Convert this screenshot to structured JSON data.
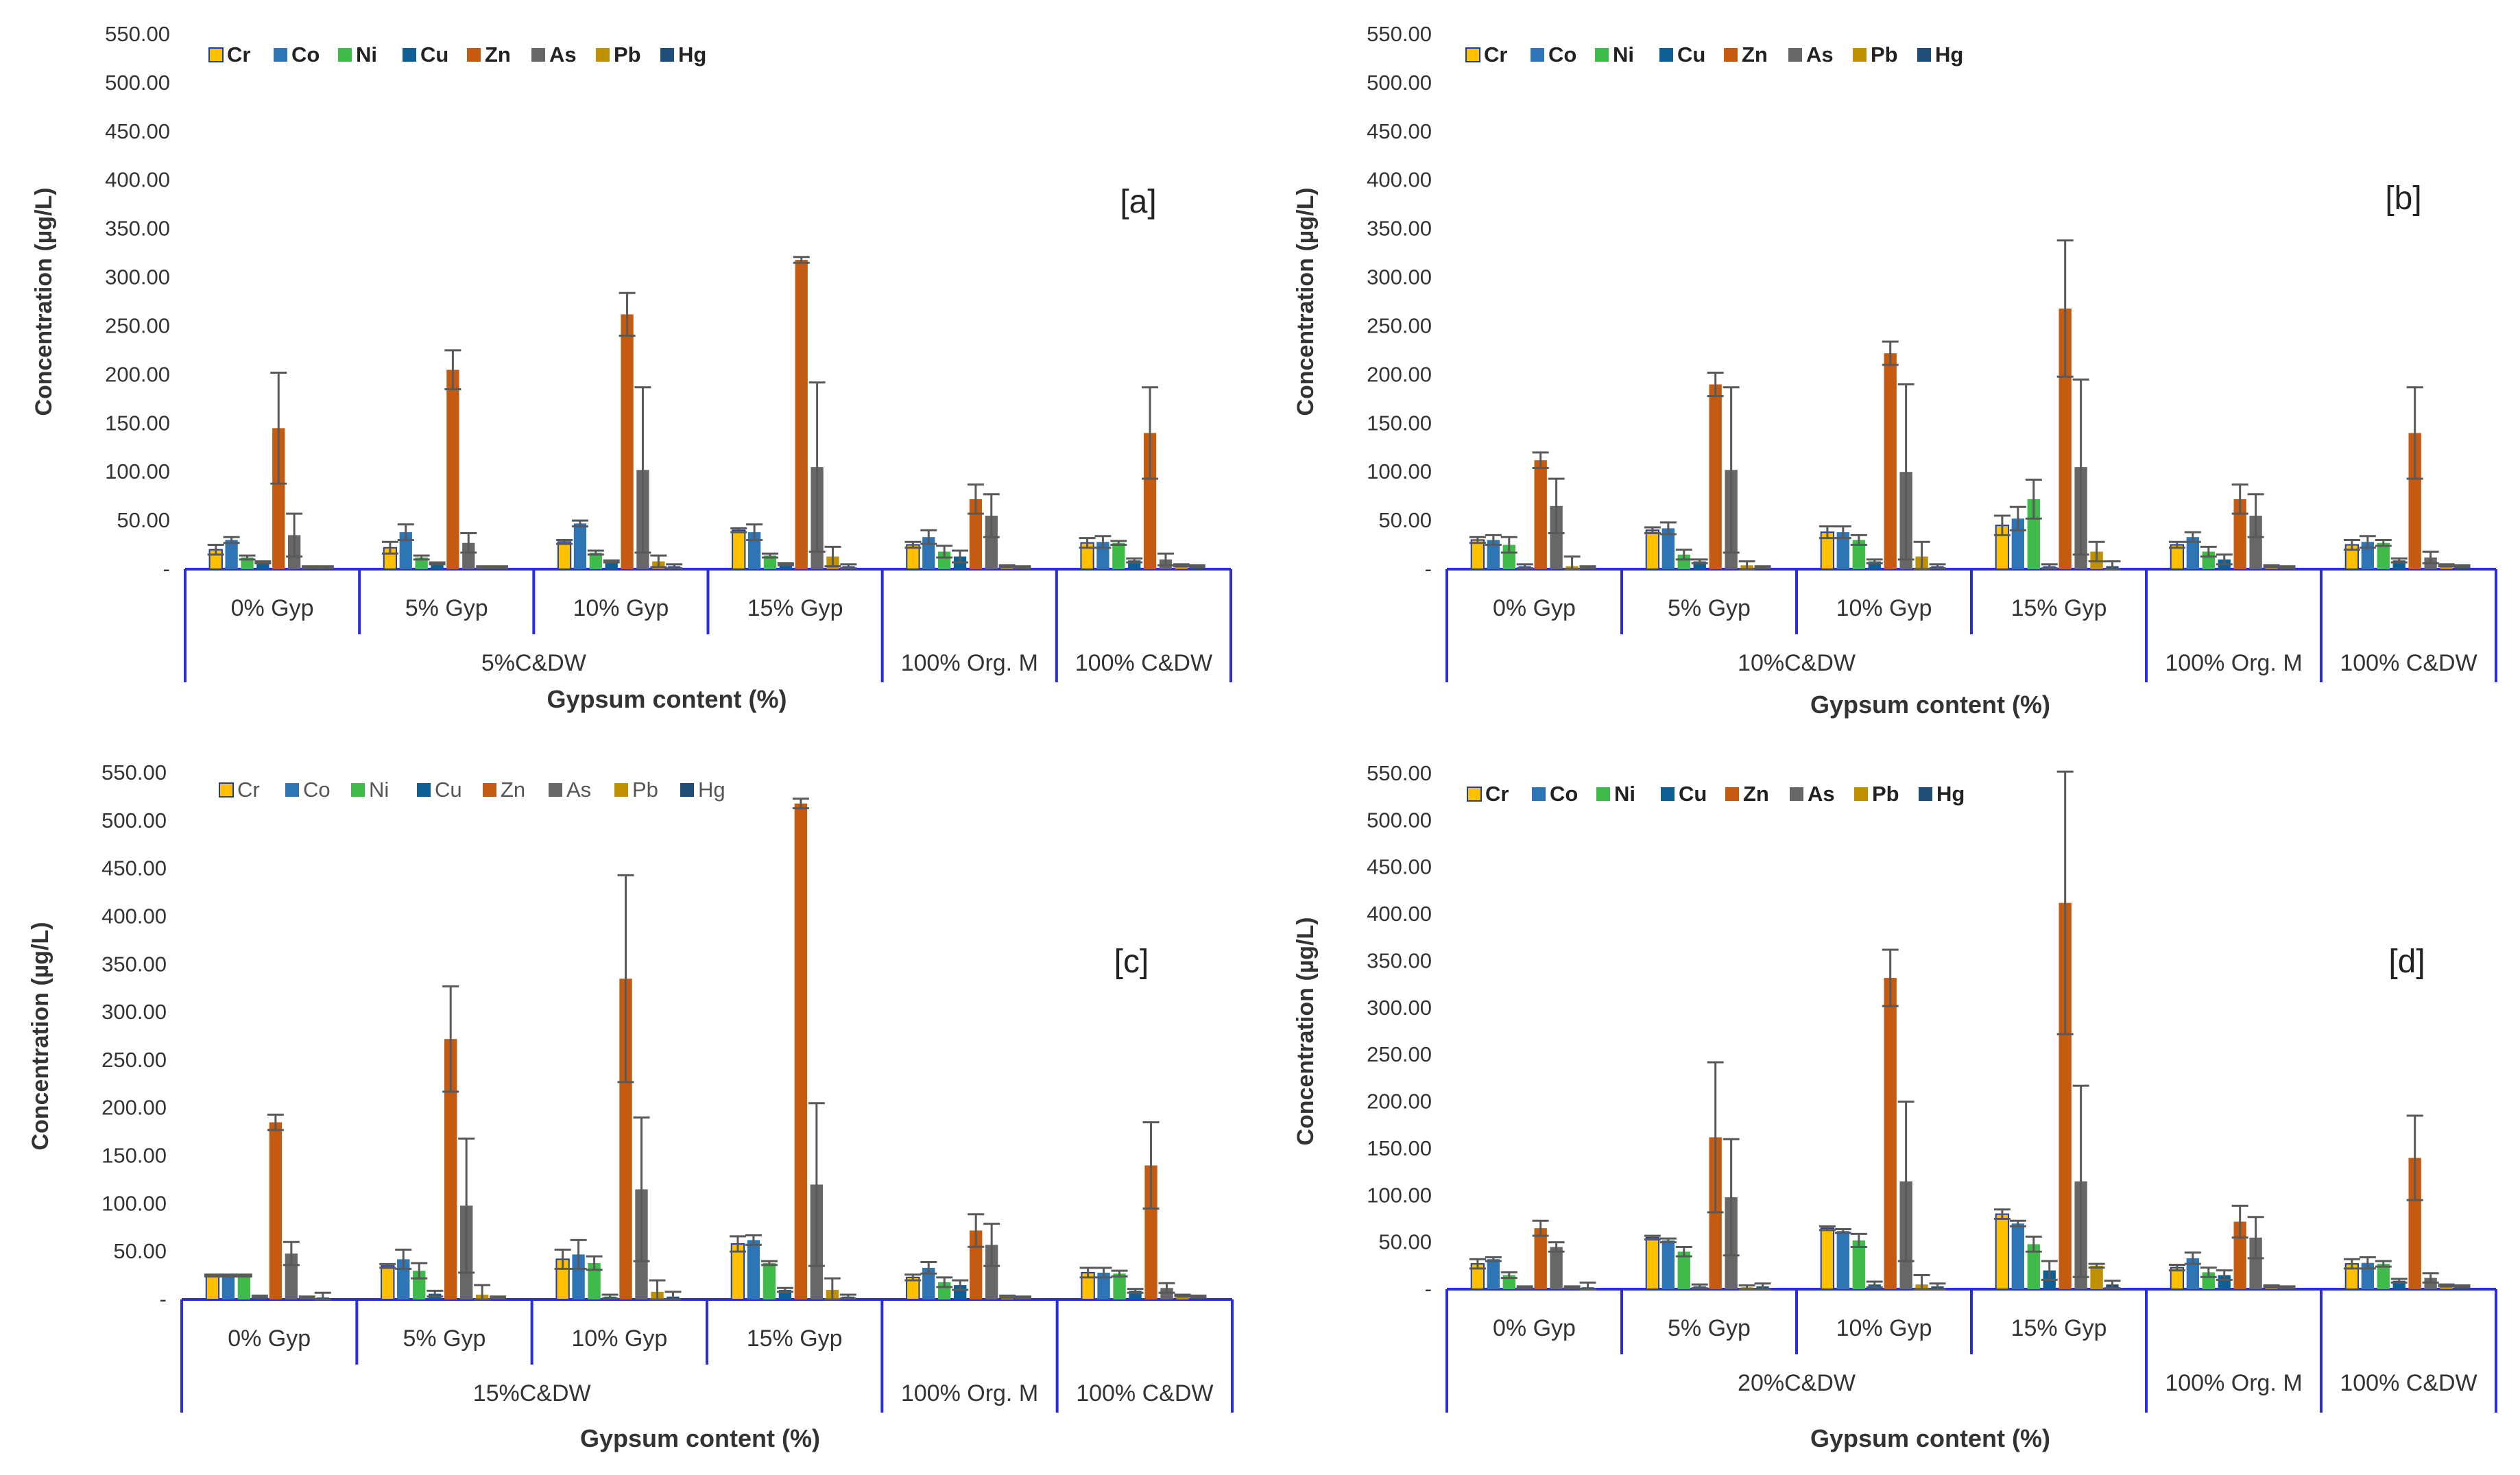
{
  "colors": {
    "Cr": "#FFC000",
    "Co": "#2E75B6",
    "Ni": "#3EBB48",
    "Cu": "#0E5F94",
    "Zn": "#C55A11",
    "As": "#676767",
    "Pb": "#BF9000",
    "Hg": "#1F4E79",
    "axis": "#2B2BE0",
    "errorbar": "#595959"
  },
  "chart_data": [
    {
      "type": "bar",
      "panel_label": "[a]",
      "ylabel": "Concentration (µg/L)",
      "xlabel": "Gypsum content (%)",
      "ylim": [
        0,
        550
      ],
      "y_ticks": [
        "-",
        "50.00",
        "100.00",
        "150.00",
        "200.00",
        "250.00",
        "300.00",
        "350.00",
        "400.00",
        "450.00",
        "500.00",
        "550.00"
      ],
      "categories": [
        "0% Gyp",
        "5% Gyp",
        "10% Gyp",
        "15% Gyp",
        "",
        ""
      ],
      "groups": [
        {
          "label": "5%C&DW",
          "span": [
            0,
            3
          ]
        },
        {
          "label": "100% Org. M",
          "span": [
            4,
            4
          ]
        },
        {
          "label": "100% C&DW",
          "span": [
            5,
            5
          ]
        }
      ],
      "series": [
        {
          "name": "Cr",
          "values": [
            20,
            22,
            28,
            40,
            25,
            27
          ],
          "errors": [
            5,
            6,
            2,
            2,
            3,
            5
          ]
        },
        {
          "name": "Co",
          "values": [
            30,
            38,
            47,
            38,
            33,
            28
          ],
          "errors": [
            3,
            8,
            3,
            8,
            7,
            6
          ]
        },
        {
          "name": "Ni",
          "values": [
            12,
            12,
            17,
            14,
            18,
            27
          ],
          "errors": [
            2,
            2,
            2,
            2,
            6,
            2
          ]
        },
        {
          "name": "Cu",
          "values": [
            7,
            6,
            8,
            5,
            13,
            9
          ],
          "errors": [
            1,
            1,
            1,
            1,
            6,
            2
          ]
        },
        {
          "name": "Zn",
          "values": [
            145,
            205,
            262,
            318,
            72,
            140
          ],
          "errors": [
            57,
            20,
            22,
            3,
            15,
            47
          ]
        },
        {
          "name": "As",
          "values": [
            35,
            27,
            102,
            105,
            55,
            10
          ],
          "errors": [
            22,
            10,
            85,
            87,
            22,
            6
          ]
        },
        {
          "name": "Pb",
          "values": [
            2,
            2,
            8,
            13,
            3,
            4
          ],
          "errors": [
            1,
            1,
            6,
            10,
            1,
            1
          ]
        },
        {
          "name": "Hg",
          "values": [
            2,
            2,
            3,
            3,
            2,
            3
          ],
          "errors": [
            1,
            1,
            2,
            2,
            1,
            1
          ]
        }
      ]
    },
    {
      "type": "bar",
      "panel_label": "[b]",
      "ylabel": "Concentration (µg/L)",
      "xlabel": "Gypsum content (%)",
      "ylim": [
        0,
        550
      ],
      "y_ticks": [
        "-",
        "50.00",
        "100.00",
        "150.00",
        "200.00",
        "250.00",
        "300.00",
        "350.00",
        "400.00",
        "450.00",
        "500.00",
        "550.00"
      ],
      "categories": [
        "0% Gyp",
        "5% Gyp",
        "10% Gyp",
        "15% Gyp",
        "",
        ""
      ],
      "groups": [
        {
          "label": "10%C&DW",
          "span": [
            0,
            3
          ]
        },
        {
          "label": "100% Org. M",
          "span": [
            4,
            4
          ]
        },
        {
          "label": "100% C&DW",
          "span": [
            5,
            5
          ]
        }
      ],
      "series": [
        {
          "name": "Cr",
          "values": [
            30,
            40,
            38,
            45,
            25,
            25
          ],
          "errors": [
            3,
            3,
            6,
            10,
            3,
            5
          ]
        },
        {
          "name": "Co",
          "values": [
            30,
            42,
            38,
            52,
            33,
            28
          ],
          "errors": [
            5,
            6,
            6,
            12,
            5,
            6
          ]
        },
        {
          "name": "Ni",
          "values": [
            25,
            15,
            30,
            72,
            18,
            27
          ],
          "errors": [
            8,
            5,
            5,
            20,
            5,
            3
          ]
        },
        {
          "name": "Cu",
          "values": [
            3,
            8,
            8,
            3,
            10,
            9
          ],
          "errors": [
            2,
            2,
            2,
            2,
            5,
            2
          ]
        },
        {
          "name": "Zn",
          "values": [
            112,
            190,
            222,
            268,
            72,
            140
          ],
          "errors": [
            8,
            12,
            12,
            70,
            15,
            47
          ]
        },
        {
          "name": "As",
          "values": [
            65,
            102,
            100,
            105,
            55,
            12
          ],
          "errors": [
            28,
            85,
            90,
            90,
            22,
            6
          ]
        },
        {
          "name": "Pb",
          "values": [
            3,
            4,
            13,
            18,
            3,
            4
          ],
          "errors": [
            10,
            4,
            15,
            10,
            1,
            1
          ]
        },
        {
          "name": "Hg",
          "values": [
            2,
            2,
            3,
            3,
            2,
            3
          ],
          "errors": [
            1,
            1,
            2,
            5,
            1,
            1
          ]
        }
      ]
    },
    {
      "type": "bar",
      "panel_label": "[c]",
      "ylabel": "Concentration (µg/L)",
      "xlabel": "Gypsum content (%)",
      "ylim": [
        0,
        550
      ],
      "y_ticks": [
        "-",
        "50.00",
        "100.00",
        "150.00",
        "200.00",
        "250.00",
        "300.00",
        "350.00",
        "400.00",
        "450.00",
        "500.00",
        "550.00"
      ],
      "categories": [
        "0% Gyp",
        "5% Gyp",
        "10% Gyp",
        "15% Gyp",
        "",
        ""
      ],
      "groups": [
        {
          "label": "15%C&DW",
          "span": [
            0,
            3
          ]
        },
        {
          "label": "100% Org. M",
          "span": [
            4,
            4
          ]
        },
        {
          "label": "100% C&DW",
          "span": [
            5,
            5
          ]
        }
      ],
      "series": [
        {
          "name": "Cr",
          "values": [
            25,
            35,
            42,
            58,
            23,
            28
          ],
          "errors": [
            1,
            2,
            10,
            8,
            3,
            5
          ]
        },
        {
          "name": "Co",
          "values": [
            25,
            42,
            47,
            62,
            33,
            28
          ],
          "errors": [
            1,
            10,
            15,
            5,
            6,
            5
          ]
        },
        {
          "name": "Ni",
          "values": [
            25,
            30,
            38,
            38,
            18,
            27
          ],
          "errors": [
            1,
            8,
            7,
            2,
            5,
            3
          ]
        },
        {
          "name": "Cu",
          "values": [
            3,
            6,
            3,
            10,
            15,
            9
          ],
          "errors": [
            1,
            3,
            2,
            2,
            5,
            2
          ]
        },
        {
          "name": "Zn",
          "values": [
            185,
            272,
            335,
            518,
            72,
            140
          ],
          "errors": [
            8,
            55,
            108,
            5,
            17,
            45
          ]
        },
        {
          "name": "As",
          "values": [
            48,
            98,
            115,
            120,
            57,
            12
          ],
          "errors": [
            12,
            70,
            75,
            85,
            22,
            5
          ]
        },
        {
          "name": "Pb",
          "values": [
            2,
            5,
            8,
            10,
            3,
            4
          ],
          "errors": [
            1,
            10,
            12,
            12,
            1,
            1
          ]
        },
        {
          "name": "Hg",
          "values": [
            2,
            2,
            3,
            3,
            2,
            3
          ],
          "errors": [
            5,
            1,
            5,
            2,
            1,
            1
          ]
        }
      ]
    },
    {
      "type": "bar",
      "panel_label": "[d]",
      "ylabel": "Concentration (µg/L)",
      "xlabel": "Gypsum content (%)",
      "ylim": [
        0,
        550
      ],
      "y_ticks": [
        "-",
        "50.00",
        "100.00",
        "150.00",
        "200.00",
        "250.00",
        "300.00",
        "350.00",
        "400.00",
        "450.00",
        "500.00",
        "550.00"
      ],
      "categories": [
        "0% Gyp",
        "5% Gyp",
        "10% Gyp",
        "15% Gyp",
        "",
        ""
      ],
      "groups": [
        {
          "label": "20%C&DW",
          "span": [
            0,
            3
          ]
        },
        {
          "label": "100% Org. M",
          "span": [
            4,
            4
          ]
        },
        {
          "label": "100% C&DW",
          "span": [
            5,
            5
          ]
        }
      ],
      "series": [
        {
          "name": "Cr",
          "values": [
            27,
            55,
            65,
            80,
            23,
            27
          ],
          "errors": [
            5,
            2,
            2,
            5,
            3,
            5
          ]
        },
        {
          "name": "Co",
          "values": [
            32,
            52,
            62,
            70,
            33,
            28
          ],
          "errors": [
            2,
            2,
            2,
            3,
            6,
            6
          ]
        },
        {
          "name": "Ni",
          "values": [
            15,
            40,
            52,
            48,
            18,
            27
          ],
          "errors": [
            3,
            5,
            7,
            8,
            5,
            3
          ]
        },
        {
          "name": "Cu",
          "values": [
            2,
            3,
            5,
            20,
            15,
            9
          ],
          "errors": [
            1,
            2,
            3,
            10,
            5,
            2
          ]
        },
        {
          "name": "Zn",
          "values": [
            65,
            162,
            332,
            412,
            72,
            140
          ],
          "errors": [
            8,
            80,
            30,
            140,
            17,
            45
          ]
        },
        {
          "name": "As",
          "values": [
            45,
            98,
            115,
            115,
            55,
            12
          ],
          "errors": [
            5,
            62,
            85,
            102,
            22,
            5
          ]
        },
        {
          "name": "Pb",
          "values": [
            2,
            2,
            5,
            25,
            3,
            4
          ],
          "errors": [
            1,
            2,
            10,
            2,
            1,
            1
          ]
        },
        {
          "name": "Hg",
          "values": [
            2,
            3,
            3,
            5,
            2,
            3
          ],
          "errors": [
            5,
            3,
            3,
            4,
            1,
            1
          ]
        }
      ]
    }
  ]
}
